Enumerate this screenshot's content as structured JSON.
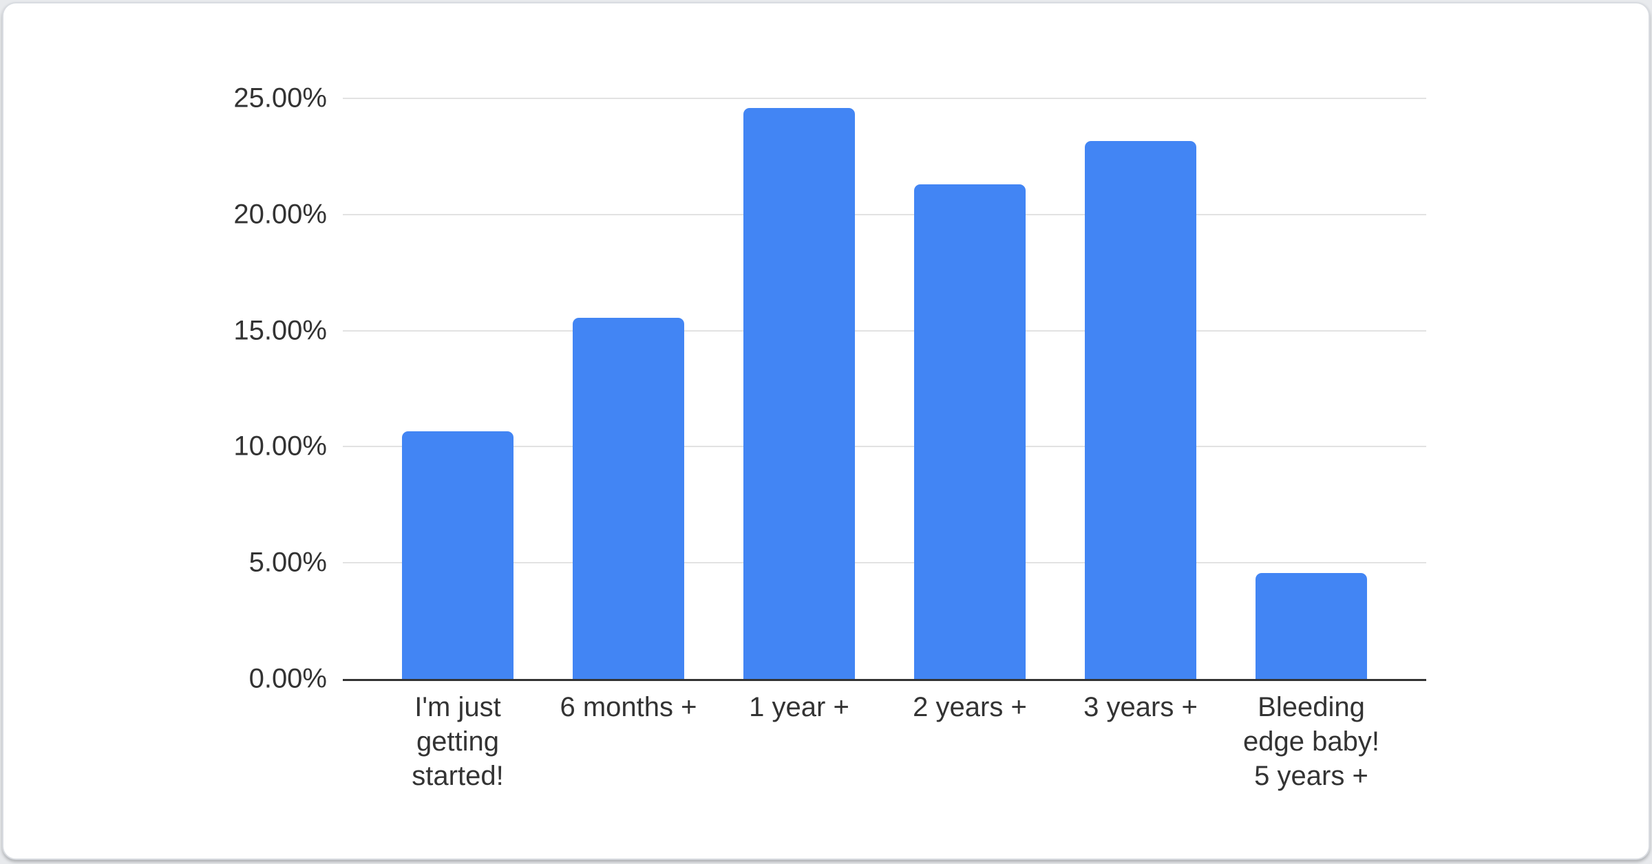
{
  "card": {
    "background": "#ffffff",
    "border_color": "#d9dce1"
  },
  "chart_data": {
    "type": "bar",
    "categories": [
      "I'm just\ngetting\nstarted!",
      "6 months +",
      "1 year +",
      "2 years +",
      "3 years +",
      "Bleeding\nedge baby!\n5 years +"
    ],
    "values": [
      10.65,
      15.55,
      24.6,
      21.3,
      23.15,
      4.55
    ],
    "unit": "%",
    "ylim": [
      0,
      25
    ],
    "ytick_interval": 5,
    "yticks": [
      {
        "value": 0,
        "label": "0.00%"
      },
      {
        "value": 5,
        "label": "5.00%"
      },
      {
        "value": 10,
        "label": "10.00%"
      },
      {
        "value": 15,
        "label": "15.00%"
      },
      {
        "value": 20,
        "label": "20.00%"
      },
      {
        "value": 25,
        "label": "25.00%"
      }
    ],
    "grid": "horizontal",
    "legend": "none",
    "bar_color": "#4285f4",
    "gridline_color": "#e2e2e2",
    "axis_line_color": "#333333",
    "text_color": "#333333"
  }
}
